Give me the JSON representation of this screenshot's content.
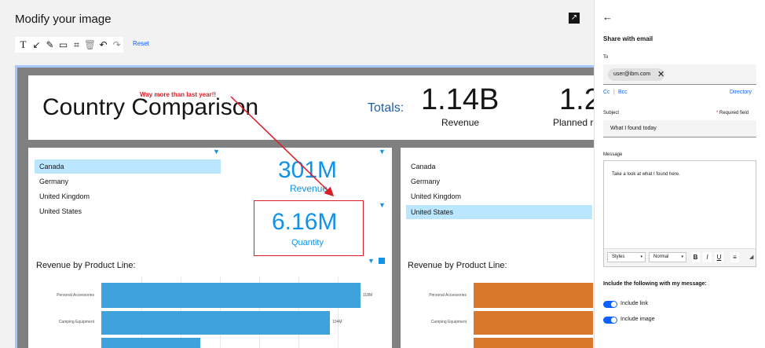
{
  "editor": {
    "title": "Modify your image",
    "reset_label": "Reset",
    "tools": [
      {
        "name": "text-tool-icon",
        "glyph": "T"
      },
      {
        "name": "arrow-tool-icon",
        "glyph": "↙"
      },
      {
        "name": "pen-tool-icon",
        "glyph": "✎"
      },
      {
        "name": "rectangle-tool-icon",
        "glyph": "▭"
      },
      {
        "name": "crop-tool-icon",
        "glyph": "⌗"
      },
      {
        "name": "delete-tool-icon",
        "glyph": "🗑"
      },
      {
        "name": "undo-icon",
        "glyph": "↶"
      },
      {
        "name": "redo-icon",
        "glyph": "↷"
      }
    ]
  },
  "dashboard": {
    "title": "Country Comparison",
    "annotation": "Way more than last year!!",
    "totals_label": "Totals:",
    "total_revenue": "1.14B",
    "total_revenue_label": "Revenue",
    "total_planned": "1.2",
    "total_planned_label": "Planned r",
    "left": {
      "countries": [
        "Canada",
        "Germany",
        "United Kingdom",
        "United States"
      ],
      "selected": "Canada",
      "kpi_revenue": "301M",
      "kpi_revenue_label": "Revenue",
      "kpi_quantity": "6.16M",
      "kpi_quantity_label": "Quantity",
      "chart_title": "Revenue by Product Line:",
      "bars": [
        {
          "label": "Personal Accessories",
          "value_label": "118M"
        },
        {
          "label": "Camping Equipment",
          "value_label": "104M"
        },
        {
          "label": ""
        }
      ]
    },
    "right": {
      "countries": [
        "Canada",
        "Germany",
        "United Kingdom",
        "United States"
      ],
      "selected": "United States",
      "chart_title": "Revenue by Product Line:",
      "bars": [
        {
          "label": "Personal Accessories"
        },
        {
          "label": "Camping Equipment"
        },
        {
          "label": ""
        }
      ]
    },
    "colors": {
      "left_bar": "#3fa2dd",
      "right_bar": "#d9782a",
      "annotation": "#da1e28"
    }
  },
  "chart_data": [
    {
      "type": "bar",
      "title": "Revenue by Product Line:",
      "categories": [
        "Personal Accessories",
        "Camping Equipment",
        ""
      ],
      "values": [
        118,
        104,
        45
      ],
      "unit": "M",
      "orientation": "horizontal"
    }
  ],
  "share": {
    "title": "Share with email",
    "to_label": "To",
    "recipient": "user@ibm.com",
    "cc_label": "Cc",
    "bcc_label": "Bcc",
    "directory_label": "Directory",
    "subject_label": "Subject",
    "required_label": "Required field",
    "subject_value": "What I found today",
    "message_label": "Message",
    "message_value": "Take a look at what I found here.",
    "styles_label": "Styles",
    "normal_label": "Normal",
    "include_title": "Include the following with my message:",
    "include_link": "Include link",
    "include_image": "Include image"
  }
}
